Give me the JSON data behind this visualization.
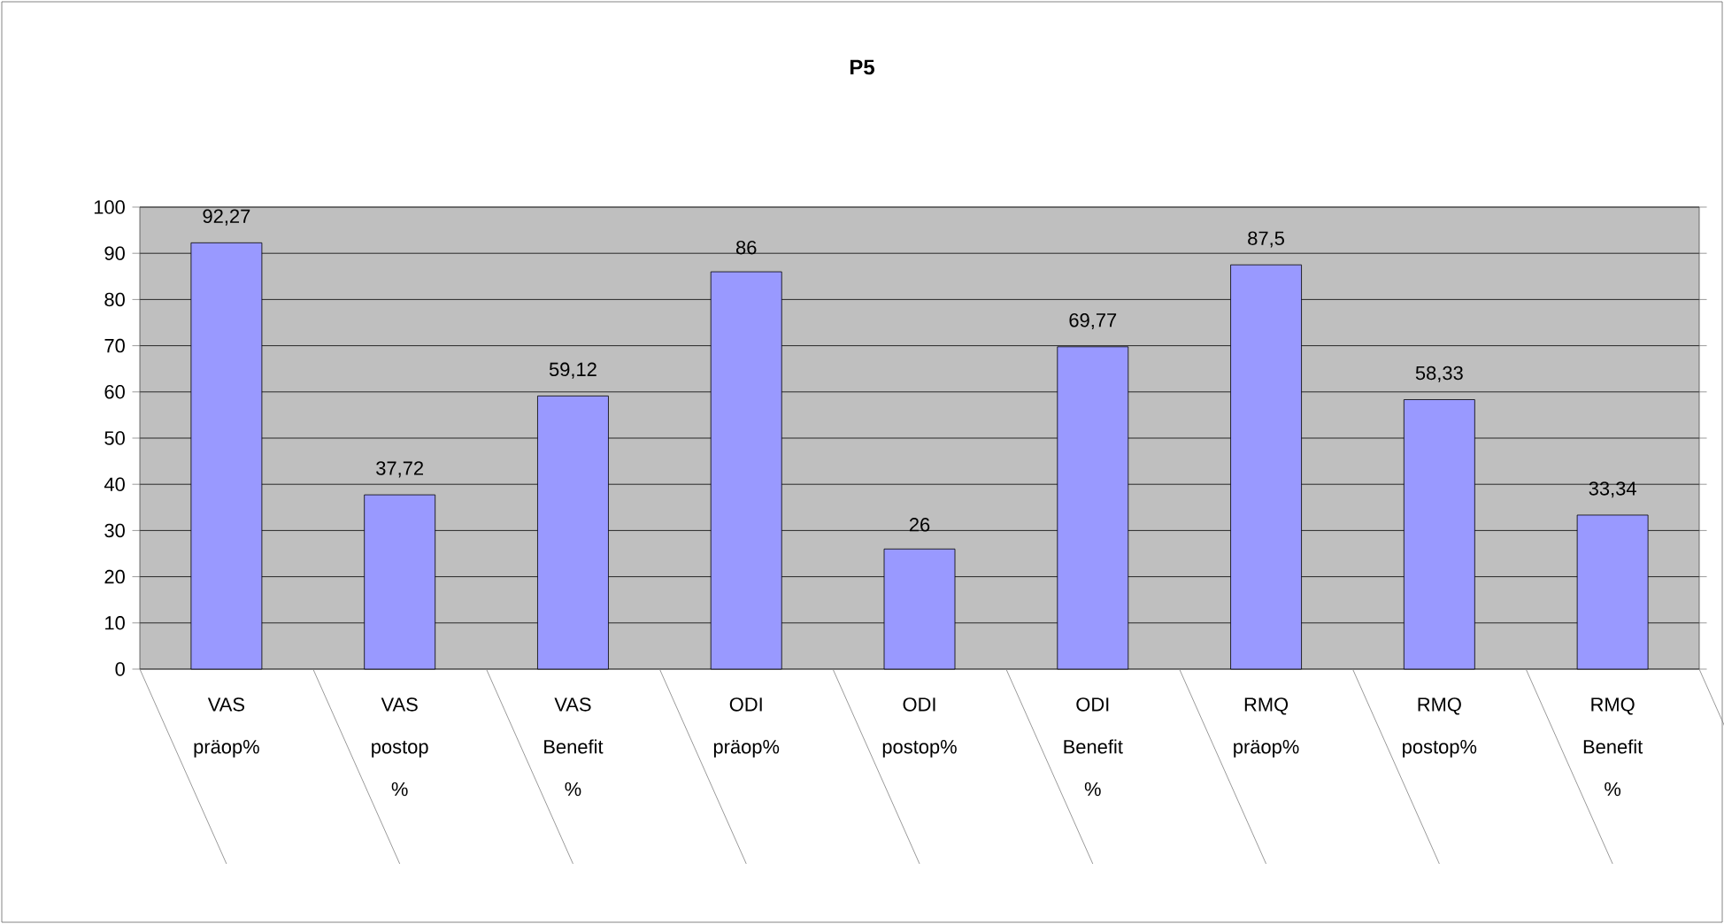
{
  "chart_data": {
    "type": "bar",
    "title": "P5",
    "categories": [
      "VAS präop%",
      "VAS postop %",
      "VAS Benefit %",
      "ODI präop%",
      "ODI postop%",
      "ODI Benefit %",
      "RMQ präop%",
      "RMQ postop%",
      "RMQ Benefit %"
    ],
    "values": [
      92.27,
      37.72,
      59.12,
      86,
      26,
      69.77,
      87.5,
      58.33,
      33.34
    ],
    "value_labels": [
      "92,27",
      "37,72",
      "59,12",
      "86",
      "26",
      "69,77",
      "87,5",
      "58,33",
      "33,34"
    ],
    "color": "#9999ff",
    "ylim": [
      0,
      100
    ],
    "yticks": [
      0,
      10,
      20,
      30,
      40,
      50,
      60,
      70,
      80,
      90,
      100
    ],
    "grid": "y"
  }
}
